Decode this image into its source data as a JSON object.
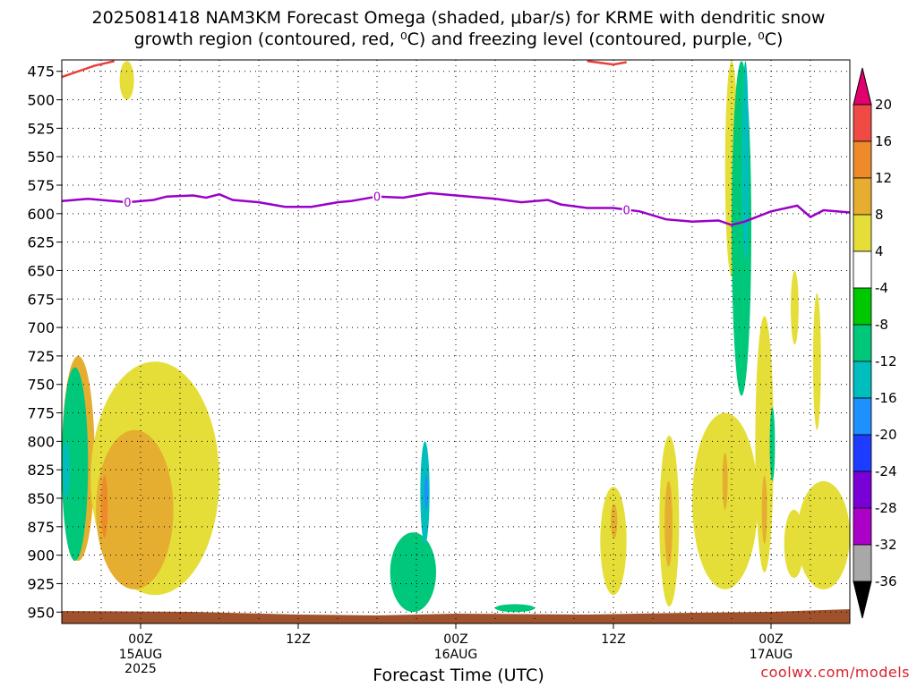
{
  "title_line1": "2025081418 NAM3KM Forecast Omega (shaded, μbar/s) for KRME with dendritic snow",
  "title_line2": "growth region (contoured, red, ⁰C) and freezing level (contoured, purple, ⁰C)",
  "x_axis_label": "Forecast Time (UTC)",
  "credit": "coolwx.com/models",
  "chart_data": {
    "type": "time-height contour",
    "y_axis": {
      "ticks": [
        475,
        500,
        525,
        550,
        575,
        600,
        625,
        650,
        675,
        700,
        725,
        750,
        775,
        800,
        825,
        850,
        875,
        900,
        925,
        950
      ],
      "range": [
        465,
        960
      ],
      "unit": "hPa"
    },
    "x_axis": {
      "ticks": [
        {
          "label": "00Z",
          "sub": [
            "15AUG",
            "2025"
          ],
          "hour": 6
        },
        {
          "label": "12Z",
          "sub": [],
          "hour": 18
        },
        {
          "label": "00Z",
          "sub": [
            "16AUG"
          ],
          "hour": 30
        },
        {
          "label": "12Z",
          "sub": [],
          "hour": 42
        },
        {
          "label": "00Z",
          "sub": [
            "17AUG"
          ],
          "hour": 54
        }
      ],
      "range_hours": [
        0,
        60
      ]
    },
    "colorbar": {
      "levels": [
        20,
        16,
        12,
        8,
        4,
        -4,
        -8,
        -12,
        -16,
        -20,
        -24,
        -28,
        -32,
        -36
      ],
      "colors": [
        "#e0006e",
        "#f04a45",
        "#ee8a2a",
        "#e6ae30",
        "#e6de38",
        "#ffffff",
        "#00c800",
        "#00c87a",
        "#00bebe",
        "#1e90ff",
        "#1e3cff",
        "#7a00d8",
        "#aa00c8",
        "#a8a8a8",
        "#000000"
      ]
    },
    "freezing_level": {
      "label": "0",
      "points": [
        [
          0,
          589
        ],
        [
          2,
          587
        ],
        [
          5,
          590
        ],
        [
          7,
          588
        ],
        [
          8,
          585
        ],
        [
          10,
          584
        ],
        [
          11,
          586
        ],
        [
          12,
          583
        ],
        [
          13,
          588
        ],
        [
          15,
          590
        ],
        [
          17,
          594
        ],
        [
          19,
          594
        ],
        [
          21,
          590
        ],
        [
          22,
          589
        ],
        [
          24,
          585
        ],
        [
          26,
          586
        ],
        [
          28,
          582
        ],
        [
          30,
          584
        ],
        [
          33,
          587
        ],
        [
          35,
          590
        ],
        [
          37,
          588
        ],
        [
          38,
          592
        ],
        [
          40,
          595
        ],
        [
          42,
          595
        ],
        [
          44,
          598
        ],
        [
          46,
          605
        ],
        [
          48,
          607
        ],
        [
          50,
          606
        ],
        [
          51,
          610
        ],
        [
          52,
          607
        ],
        [
          54,
          598
        ],
        [
          56,
          593
        ],
        [
          57,
          603
        ],
        [
          58,
          597
        ],
        [
          60,
          599
        ]
      ]
    },
    "dgz_contour": {
      "segments": [
        [
          [
            0,
            480
          ],
          [
            1.5,
            474
          ],
          [
            2.5,
            470
          ],
          [
            4,
            466
          ]
        ],
        [
          [
            40,
            466
          ],
          [
            42,
            469
          ],
          [
            43,
            467
          ]
        ]
      ]
    },
    "omega_regions": [
      {
        "value": 8,
        "t": [
          0,
          2.5
        ],
        "p": [
          725,
          905
        ]
      },
      {
        "value": -8,
        "t": [
          0,
          2
        ],
        "p": [
          735,
          905
        ]
      },
      {
        "value": -12,
        "t": [
          0.1,
          0.6
        ],
        "p": [
          800,
          850
        ]
      },
      {
        "value": 4,
        "t": [
          2.2,
          12
        ],
        "p": [
          730,
          935
        ]
      },
      {
        "value": 8,
        "t": [
          2.6,
          8.5
        ],
        "p": [
          790,
          930
        ]
      },
      {
        "value": 12,
        "t": [
          3,
          3.5
        ],
        "p": [
          830,
          885
        ]
      },
      {
        "value": 4,
        "t": [
          4.4,
          5.5
        ],
        "p": [
          466,
          500
        ]
      },
      {
        "value": -8,
        "t": [
          25,
          28.5
        ],
        "p": [
          880,
          950
        ]
      },
      {
        "value": -12,
        "t": [
          27.3,
          28
        ],
        "p": [
          800,
          890
        ]
      },
      {
        "value": -16,
        "t": [
          27.6,
          27.9
        ],
        "p": [
          830,
          860
        ]
      },
      {
        "value": -8,
        "t": [
          33,
          36
        ],
        "p": [
          943,
          950
        ]
      },
      {
        "value": 4,
        "t": [
          41,
          43
        ],
        "p": [
          840,
          935
        ]
      },
      {
        "value": 8,
        "t": [
          41.8,
          42.3
        ],
        "p": [
          855,
          885
        ]
      },
      {
        "value": 4,
        "t": [
          45.5,
          47
        ],
        "p": [
          795,
          945
        ]
      },
      {
        "value": 8,
        "t": [
          45.9,
          46.5
        ],
        "p": [
          835,
          910
        ]
      },
      {
        "value": 4,
        "t": [
          48,
          53
        ],
        "p": [
          775,
          930
        ]
      },
      {
        "value": 8,
        "t": [
          50.3,
          50.7
        ],
        "p": [
          810,
          860
        ]
      },
      {
        "value": 4,
        "t": [
          50.5,
          51.5
        ],
        "p": [
          466,
          655
        ]
      },
      {
        "value": -8,
        "t": [
          51,
          52.5
        ],
        "p": [
          466,
          760
        ]
      },
      {
        "value": -12,
        "t": [
          51.8,
          52.3
        ],
        "p": [
          466,
          640
        ]
      },
      {
        "value": 4,
        "t": [
          52.8,
          54.2
        ],
        "p": [
          690,
          915
        ]
      },
      {
        "value": 8,
        "t": [
          53.3,
          53.7
        ],
        "p": [
          830,
          890
        ]
      },
      {
        "value": -8,
        "t": [
          53.9,
          54.3
        ],
        "p": [
          770,
          835
        ]
      },
      {
        "value": 4,
        "t": [
          55,
          56.5
        ],
        "p": [
          860,
          920
        ]
      },
      {
        "value": 4,
        "t": [
          56,
          60
        ],
        "p": [
          835,
          930
        ]
      },
      {
        "value": 4,
        "t": [
          55.5,
          56.1
        ],
        "p": [
          650,
          715
        ]
      },
      {
        "value": 4,
        "t": [
          57.2,
          57.8
        ],
        "p": [
          670,
          790
        ]
      }
    ]
  }
}
